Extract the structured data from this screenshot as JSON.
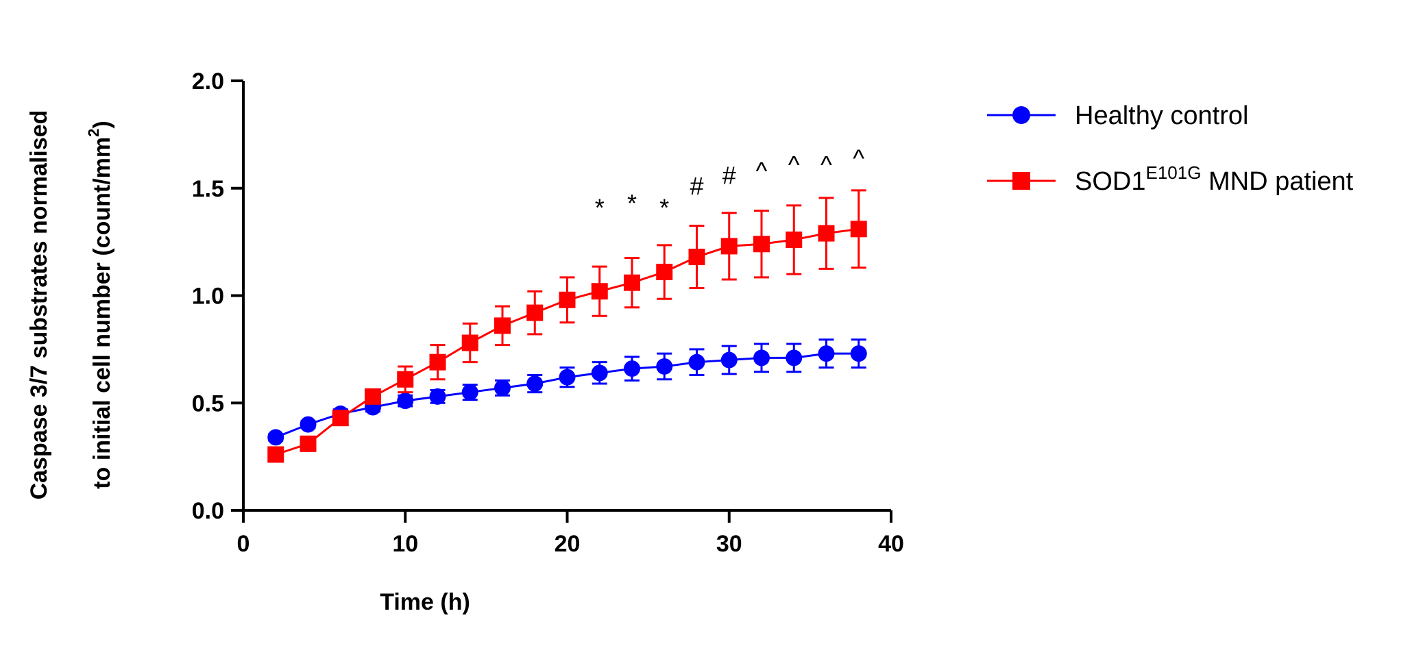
{
  "chart_data": {
    "type": "line",
    "title": "",
    "xlabel": "Time (h)",
    "ylabel_line1": "Caspase 3/7 substrates normalised",
    "ylabel_line2_prefix": "to initial cell number (count/mm",
    "ylabel_line2_sup": "2",
    "ylabel_line2_suffix": ")",
    "xlim": [
      0,
      40
    ],
    "ylim": [
      0,
      2.0
    ],
    "xticks": [
      0,
      10,
      20,
      30,
      40
    ],
    "xtick_labels": [
      "0",
      "10",
      "20",
      "30",
      "40"
    ],
    "yticks": [
      0,
      0.5,
      1.0,
      1.5,
      2.0
    ],
    "ytick_labels": [
      "0.0",
      "0.5",
      "1.0",
      "1.5",
      "2.0"
    ],
    "grid": false,
    "legend_position": "right",
    "x": [
      2,
      4,
      6,
      8,
      10,
      12,
      14,
      16,
      18,
      20,
      22,
      24,
      26,
      28,
      30,
      32,
      34,
      36,
      38
    ],
    "series": [
      {
        "label_main": "Healthy control",
        "label_sup": "",
        "label_suffix": "",
        "color": "#0000ff",
        "marker": "circle",
        "values": [
          0.34,
          0.4,
          0.45,
          0.48,
          0.51,
          0.53,
          0.55,
          0.57,
          0.59,
          0.62,
          0.64,
          0.66,
          0.67,
          0.69,
          0.7,
          0.71,
          0.71,
          0.73,
          0.73
        ],
        "errors": [
          0.015,
          0.015,
          0.02,
          0.02,
          0.025,
          0.03,
          0.035,
          0.035,
          0.04,
          0.045,
          0.05,
          0.055,
          0.06,
          0.06,
          0.065,
          0.065,
          0.065,
          0.065,
          0.065
        ]
      },
      {
        "label_main": "SOD1",
        "label_sup": "E101G",
        "label_suffix": " MND patient",
        "color": "#ff0000",
        "marker": "square",
        "values": [
          0.26,
          0.31,
          0.43,
          0.53,
          0.61,
          0.69,
          0.78,
          0.86,
          0.92,
          0.98,
          1.02,
          1.06,
          1.11,
          1.18,
          1.23,
          1.24,
          1.26,
          1.29,
          1.31
        ],
        "errors": [
          0.015,
          0.02,
          0.03,
          0.03,
          0.06,
          0.08,
          0.09,
          0.09,
          0.1,
          0.105,
          0.115,
          0.115,
          0.125,
          0.145,
          0.155,
          0.155,
          0.16,
          0.165,
          0.18
        ]
      }
    ],
    "annotations": [
      {
        "x": 22,
        "y": 1.37,
        "text": "*"
      },
      {
        "x": 24,
        "y": 1.39,
        "text": "*"
      },
      {
        "x": 26,
        "y": 1.37,
        "text": "*"
      },
      {
        "x": 28,
        "y": 1.47,
        "text": "#"
      },
      {
        "x": 30,
        "y": 1.52,
        "text": "#"
      },
      {
        "x": 32,
        "y": 1.54,
        "text": "^"
      },
      {
        "x": 34,
        "y": 1.57,
        "text": "^"
      },
      {
        "x": 36,
        "y": 1.57,
        "text": "^"
      },
      {
        "x": 38,
        "y": 1.6,
        "text": "^"
      }
    ]
  }
}
